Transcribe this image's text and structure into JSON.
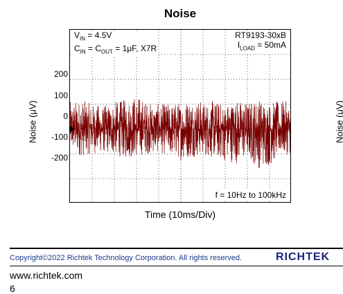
{
  "chart_data": {
    "type": "line",
    "title": "Noise",
    "xlabel": "Time (10ms/Div)",
    "ylabel": "Noise (μV)",
    "y_tick_labels": [
      "200",
      "100",
      "0",
      "-100",
      "-200"
    ],
    "ylim": [
      -300,
      400
    ],
    "x_divisions": 10,
    "y_divisions": 8,
    "grid": "dotted",
    "series": [
      {
        "color": "#7a0000",
        "x_ms": [
          0,
          5,
          10,
          15,
          20,
          25,
          30,
          35,
          40,
          45,
          50,
          55,
          60,
          65,
          70,
          75,
          80,
          85,
          90,
          95,
          100
        ],
        "upper_envelope_uV": [
          110,
          120,
          100,
          95,
          110,
          120,
          140,
          110,
          100,
          105,
          110,
          130,
          110,
          115,
          100,
          120,
          110,
          125,
          105,
          115,
          110
        ],
        "lower_envelope_uV": [
          -90,
          -110,
          -100,
          -95,
          -105,
          -120,
          -110,
          -100,
          -95,
          -110,
          -125,
          -115,
          -105,
          -120,
          -130,
          -140,
          -120,
          -160,
          -150,
          -110,
          -100
        ]
      }
    ],
    "annotations": {
      "top_left": [
        "VIN = 4.5V",
        "CIN = COUT = 1μF, X7R"
      ],
      "top_right": [
        "RT9193-30xB",
        "ILOAD = 50mA"
      ],
      "bottom_right": "f = 10Hz to 100kHz"
    }
  },
  "page": {
    "right_edge_ylabel": "Noise (μV)",
    "copyright": "Copyright©2022 Richtek Technology Corporation. All rights reserved.",
    "logo": "RICHTEK",
    "website": "www.richtek.com",
    "page_number": "6"
  }
}
